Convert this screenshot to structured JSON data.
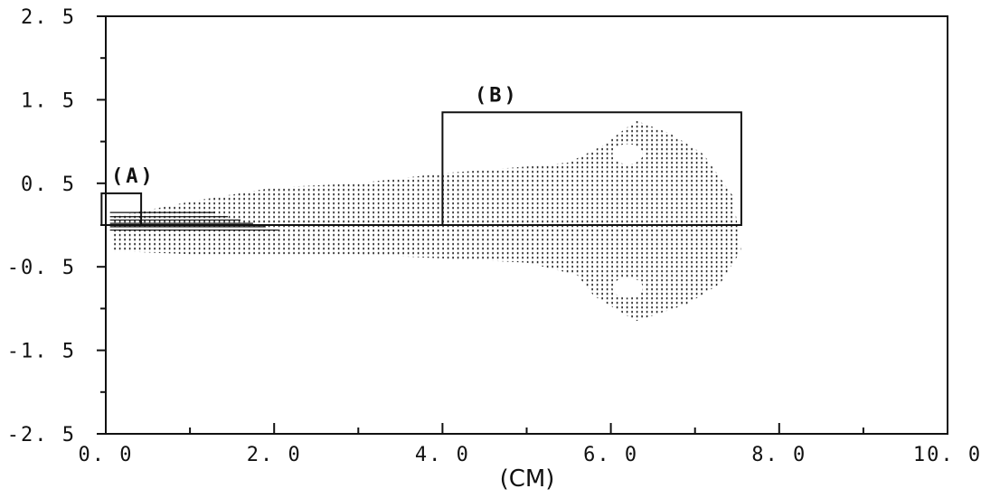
{
  "chart_data": {
    "type": "scatter",
    "title": "",
    "xlabel": "(CM)",
    "ylabel": "",
    "xlim": [
      0,
      10
    ],
    "ylim": [
      -2.5,
      2.5
    ],
    "x_ticks": [
      "0. 0",
      "2. 0",
      "4. 0",
      "6. 0",
      "8. 0",
      "10. 0"
    ],
    "y_ticks": [
      "2. 5",
      "1. 5",
      "0. 5",
      "-0. 5",
      "-1. 5",
      "-2. 5"
    ],
    "grid": false,
    "regions": [
      {
        "label": "(A)",
        "x": [
          -0.05,
          0.42
        ],
        "y": [
          0,
          0.38
        ]
      },
      {
        "label": "(B)",
        "x": [
          4.0,
          7.55
        ],
        "y": [
          0,
          1.35
        ]
      }
    ],
    "field_envelope": {
      "description": "stippled field region",
      "points": [
        [
          0.05,
          0.1
        ],
        [
          0.5,
          0.18
        ],
        [
          1.0,
          0.28
        ],
        [
          2.0,
          0.45
        ],
        [
          3.0,
          0.5
        ],
        [
          4.0,
          0.62
        ],
        [
          5.0,
          0.7
        ],
        [
          5.5,
          0.75
        ],
        [
          5.9,
          0.95
        ],
        [
          6.3,
          1.25
        ],
        [
          6.7,
          1.1
        ],
        [
          7.1,
          0.85
        ],
        [
          7.45,
          0.35
        ],
        [
          7.55,
          -0.3
        ],
        [
          7.3,
          -0.7
        ],
        [
          6.9,
          -0.95
        ],
        [
          6.3,
          -1.15
        ],
        [
          5.8,
          -0.85
        ],
        [
          5.6,
          -0.6
        ],
        [
          5.0,
          -0.45
        ],
        [
          4.0,
          -0.4
        ],
        [
          3.0,
          -0.35
        ],
        [
          2.0,
          -0.35
        ],
        [
          1.0,
          -0.35
        ],
        [
          0.3,
          -0.32
        ],
        [
          0.05,
          -0.32
        ]
      ]
    },
    "holes": [
      {
        "cx": 6.2,
        "cy": 0.85,
        "rx": 0.18,
        "ry": 0.12
      },
      {
        "cx": 6.2,
        "cy": -0.75,
        "rx": 0.18,
        "ry": 0.12
      }
    ],
    "streamlines_y": [
      0.15,
      0.1,
      0.06,
      0.02,
      -0.02,
      -0.06
    ]
  }
}
